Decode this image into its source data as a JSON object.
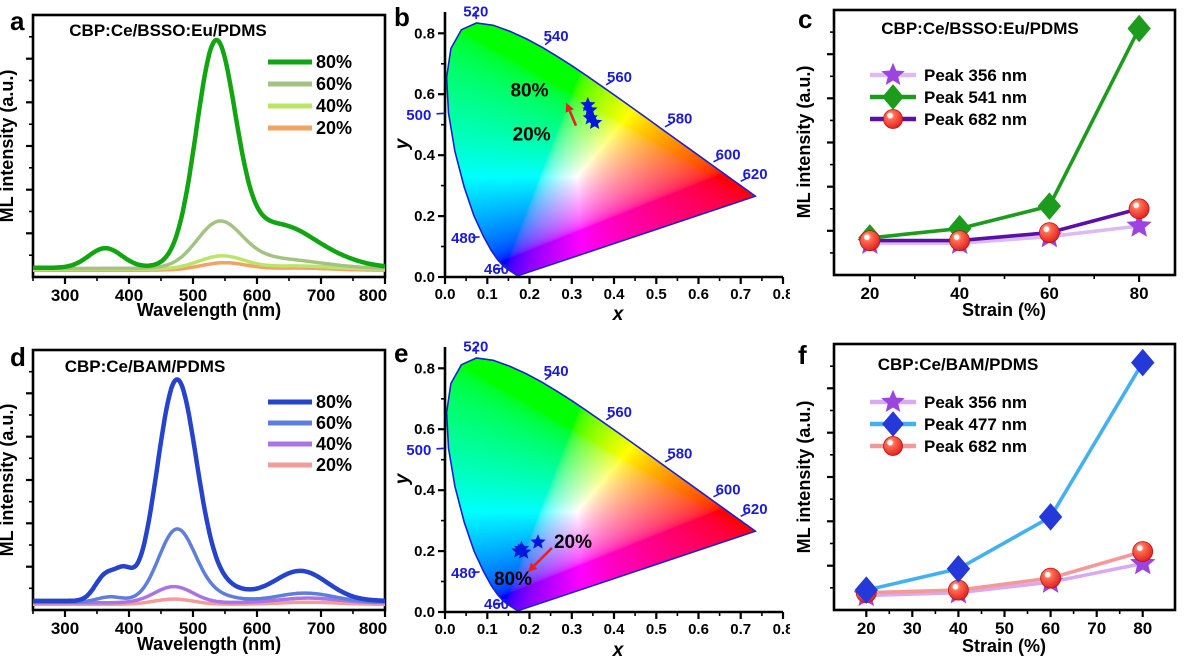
{
  "figure": {
    "background": "#ffffff"
  },
  "chart_data": [
    {
      "panel_label": "a",
      "type": "line",
      "title": "CBP:Ce/BSSO:Eu/PDMS",
      "xlabel": "Wavelength (nm)",
      "ylabel": "ML intensity (a.u.)",
      "xlim": [
        250,
        800
      ],
      "xticks": [
        300,
        400,
        500,
        600,
        700,
        800
      ],
      "xminor": [
        250,
        350,
        450,
        550,
        650,
        750
      ],
      "ylim": [
        0,
        1
      ],
      "grid": false,
      "legend_position": "upper right",
      "series": [
        {
          "name": "80%",
          "color": "#12a512",
          "width": 4.5,
          "baseline": 0.035,
          "gauss_peaks": [
            [
              363,
              0.075,
              26
            ],
            [
              535,
              0.76,
              30
            ],
            [
              568,
              0.13,
              52
            ],
            [
              645,
              0.085,
              40
            ],
            [
              695,
              0.055,
              50
            ]
          ]
        },
        {
          "name": "60%",
          "color": "#a3c383",
          "width": 3.5,
          "baseline": 0.033,
          "gauss_peaks": [
            [
              540,
              0.15,
              34
            ],
            [
              575,
              0.035,
              55
            ],
            [
              665,
              0.022,
              55
            ]
          ]
        },
        {
          "name": "40%",
          "color": "#bce46b",
          "width": 3.5,
          "baseline": 0.03,
          "gauss_peaks": [
            [
              545,
              0.05,
              36
            ],
            [
              665,
              0.012,
              50
            ]
          ]
        },
        {
          "name": "20%",
          "color": "#f2a263",
          "width": 3.5,
          "baseline": 0.026,
          "gauss_peaks": [
            [
              548,
              0.028,
              36
            ],
            [
              665,
              0.008,
              50
            ]
          ]
        }
      ]
    },
    {
      "panel_label": "b",
      "type": "scatter-cie-chromaticity",
      "xlabel": "x",
      "ylabel": "y",
      "xlim": [
        0,
        0.8
      ],
      "ylim": [
        0,
        0.87
      ],
      "xticks": [
        0.0,
        0.1,
        0.2,
        0.3,
        0.4,
        0.5,
        0.6,
        0.7,
        0.8
      ],
      "yticks": [
        0.0,
        0.2,
        0.4,
        0.6,
        0.8
      ],
      "locus_color": "#2020cc",
      "label_color": "#1a1ad9",
      "wavelength_labels": [
        {
          "wl": "460",
          "x": 0.144,
          "y": 0.0297,
          "tx": 0.122,
          "ty": 0.026
        },
        {
          "wl": "480",
          "x": 0.0913,
          "y": 0.1327,
          "tx": 0.044,
          "ty": 0.128
        },
        {
          "wl": "500",
          "x": 0.0082,
          "y": 0.5384,
          "tx": -0.062,
          "ty": 0.532
        },
        {
          "wl": "520",
          "x": 0.0743,
          "y": 0.8338,
          "tx": 0.073,
          "ty": 0.872
        },
        {
          "wl": "540",
          "x": 0.2296,
          "y": 0.7543,
          "tx": 0.263,
          "ty": 0.792
        },
        {
          "wl": "560",
          "x": 0.3731,
          "y": 0.6245,
          "tx": 0.413,
          "ty": 0.657
        },
        {
          "wl": "580",
          "x": 0.5125,
          "y": 0.4866,
          "tx": 0.556,
          "ty": 0.52
        },
        {
          "wl": "600",
          "x": 0.627,
          "y": 0.3725,
          "tx": 0.67,
          "ty": 0.402
        },
        {
          "wl": "620",
          "x": 0.6915,
          "y": 0.3083,
          "tx": 0.734,
          "ty": 0.338
        }
      ],
      "points": {
        "marker": "star",
        "color": "#0018dd",
        "xy": [
          [
            0.338,
            0.565
          ],
          [
            0.343,
            0.548
          ],
          [
            0.344,
            0.522
          ],
          [
            0.354,
            0.507
          ]
        ]
      },
      "annotations": [
        {
          "text": "80%",
          "x": 0.2,
          "y": 0.612
        },
        {
          "text": "20%",
          "x": 0.205,
          "y": 0.468
        }
      ],
      "arrow": {
        "color": "#e62020",
        "from": [
          0.31,
          0.497
        ],
        "to": [
          0.287,
          0.572
        ]
      }
    },
    {
      "panel_label": "c",
      "type": "line-scatter",
      "title": "CBP:Ce/BSSO:Eu/PDMS",
      "xlabel": "Strain (%)",
      "ylabel": "ML intensity (a.u.)",
      "x": [
        20,
        40,
        60,
        80
      ],
      "xticks": [
        20,
        40,
        60,
        80
      ],
      "xminor": [
        30,
        50,
        70
      ],
      "xlim": [
        12,
        88
      ],
      "ylim": [
        0,
        1
      ],
      "series": [
        {
          "name": "Peak 356 nm",
          "line_color": "#ddbbf2",
          "marker": "star",
          "marker_color": "#9b44e0",
          "values": [
            0.12,
            0.12,
            0.145,
            0.185
          ]
        },
        {
          "name": "Peak 541 nm",
          "line_color": "#1d9b1d",
          "marker": "diamond",
          "marker_color": "#1d9b1d",
          "values": [
            0.14,
            0.175,
            0.26,
            0.93
          ]
        },
        {
          "name": "Peak 682 nm",
          "line_color": "#5a10a8",
          "marker": "ball",
          "marker_color": "#ee2222",
          "values": [
            0.13,
            0.13,
            0.16,
            0.25
          ]
        }
      ],
      "draw_order": [
        0,
        1,
        2
      ]
    },
    {
      "panel_label": "d",
      "type": "line",
      "title": "CBP:Ce/BAM/PDMS",
      "xlabel": "Wavelength (nm)",
      "ylabel": "ML intensity (a.u.)",
      "xlim": [
        250,
        800
      ],
      "xticks": [
        300,
        400,
        500,
        600,
        700,
        800
      ],
      "xminor": [
        250,
        350,
        450,
        550,
        650,
        750
      ],
      "ylim": [
        0,
        1
      ],
      "grid": false,
      "legend_position": "upper right",
      "series": [
        {
          "name": "80%",
          "color": "#2544cb",
          "width": 4.5,
          "baseline": 0.035,
          "gauss_peaks": [
            [
              363,
              0.095,
              16
            ],
            [
              392,
              0.09,
              14
            ],
            [
              474,
              0.78,
              30
            ],
            [
              508,
              0.09,
              50
            ],
            [
              668,
              0.115,
              42
            ]
          ]
        },
        {
          "name": "60%",
          "color": "#5e7ddc",
          "width": 3.5,
          "baseline": 0.03,
          "gauss_peaks": [
            [
              370,
              0.02,
              20
            ],
            [
              474,
              0.25,
              28
            ],
            [
              505,
              0.04,
              45
            ],
            [
              675,
              0.035,
              45
            ]
          ]
        },
        {
          "name": "40%",
          "color": "#ab74e6",
          "width": 3.5,
          "baseline": 0.028,
          "gauss_peaks": [
            [
              470,
              0.062,
              30
            ],
            [
              680,
              0.018,
              45
            ]
          ]
        },
        {
          "name": "20%",
          "color": "#f59b9b",
          "width": 3.5,
          "baseline": 0.022,
          "gauss_peaks": [
            [
              470,
              0.02,
              30
            ],
            [
              680,
              0.008,
              45
            ]
          ]
        }
      ]
    },
    {
      "panel_label": "e",
      "type": "scatter-cie-chromaticity",
      "xlabel": "x",
      "ylabel": "y",
      "xlim": [
        0,
        0.8
      ],
      "ylim": [
        0,
        0.87
      ],
      "xticks": [
        0.0,
        0.1,
        0.2,
        0.3,
        0.4,
        0.5,
        0.6,
        0.7,
        0.8
      ],
      "yticks": [
        0.0,
        0.2,
        0.4,
        0.6,
        0.8
      ],
      "locus_color": "#2020cc",
      "label_color": "#1a1ad9",
      "wavelength_labels": [
        {
          "wl": "460",
          "x": 0.144,
          "y": 0.0297,
          "tx": 0.122,
          "ty": 0.026
        },
        {
          "wl": "480",
          "x": 0.0913,
          "y": 0.1327,
          "tx": 0.044,
          "ty": 0.128
        },
        {
          "wl": "500",
          "x": 0.0082,
          "y": 0.5384,
          "tx": -0.062,
          "ty": 0.532
        },
        {
          "wl": "520",
          "x": 0.0743,
          "y": 0.8338,
          "tx": 0.073,
          "ty": 0.872
        },
        {
          "wl": "540",
          "x": 0.2296,
          "y": 0.7543,
          "tx": 0.263,
          "ty": 0.792
        },
        {
          "wl": "560",
          "x": 0.3731,
          "y": 0.6245,
          "tx": 0.413,
          "ty": 0.657
        },
        {
          "wl": "580",
          "x": 0.5125,
          "y": 0.4866,
          "tx": 0.556,
          "ty": 0.52
        },
        {
          "wl": "600",
          "x": 0.627,
          "y": 0.3725,
          "tx": 0.67,
          "ty": 0.402
        },
        {
          "wl": "620",
          "x": 0.6915,
          "y": 0.3083,
          "tx": 0.734,
          "ty": 0.338
        }
      ],
      "points": {
        "marker": "star",
        "color": "#0018dd",
        "xy": [
          [
            0.175,
            0.2
          ],
          [
            0.186,
            0.196
          ],
          [
            0.181,
            0.208
          ],
          [
            0.22,
            0.229
          ]
        ]
      },
      "annotations": [
        {
          "text": "20%",
          "x": 0.303,
          "y": 0.229
        },
        {
          "text": "80%",
          "x": 0.161,
          "y": 0.108
        }
      ],
      "arrow": {
        "color": "#e62020",
        "from": [
          0.253,
          0.21
        ],
        "to": [
          0.196,
          0.131
        ]
      }
    },
    {
      "panel_label": "f",
      "type": "line-scatter",
      "title": "CBP:Ce/BAM/PDMS",
      "xlabel": "Strain (%)",
      "ylabel": "ML intensity (a.u.)",
      "x": [
        20,
        40,
        60,
        80
      ],
      "xticks": [
        20,
        30,
        40,
        50,
        60,
        70,
        80
      ],
      "xminor": [
        25,
        35,
        45,
        55,
        65,
        75
      ],
      "xlim": [
        13,
        87
      ],
      "ylim": [
        0,
        1
      ],
      "series": [
        {
          "name": "Peak 356 nm",
          "line_color": "#d9aaf0",
          "marker": "star",
          "marker_color": "#9b44e0",
          "values": [
            0.055,
            0.065,
            0.105,
            0.175
          ]
        },
        {
          "name": "Peak 477 nm",
          "line_color": "#45b0ef",
          "marker": "diamond",
          "marker_color": "#2538d8",
          "values": [
            0.075,
            0.155,
            0.35,
            0.93
          ]
        },
        {
          "name": "Peak 682 nm",
          "line_color": "#f59898",
          "marker": "ball",
          "marker_color": "#ee2222",
          "values": [
            0.065,
            0.075,
            0.12,
            0.22
          ]
        }
      ],
      "draw_order": [
        0,
        2,
        1
      ]
    }
  ]
}
